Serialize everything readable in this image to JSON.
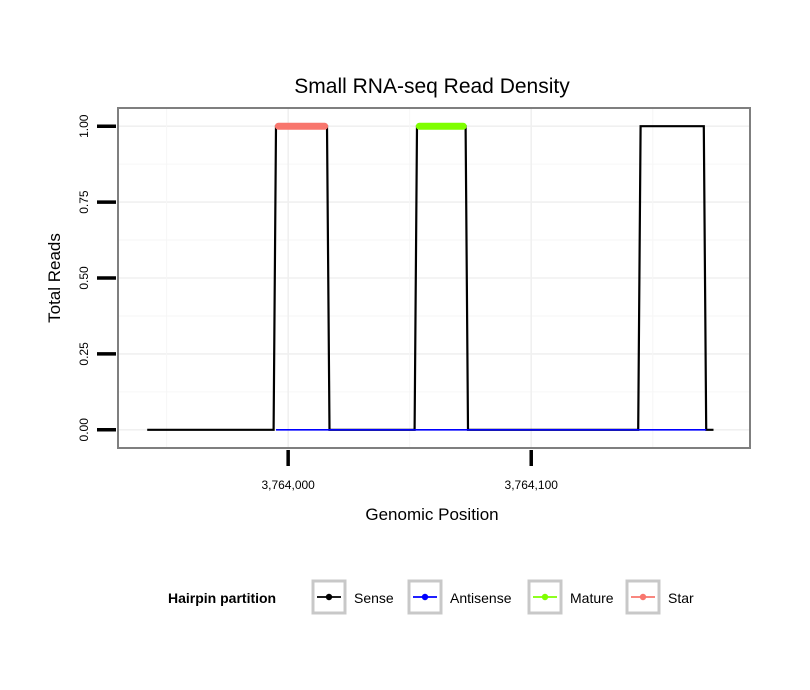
{
  "chart_data": {
    "type": "line",
    "title": "Small RNA-seq Read Density",
    "xlabel": "Genomic Position",
    "ylabel": "Total Reads",
    "xlim": [
      3763930,
      3764190
    ],
    "ylim": [
      -0.06,
      1.06
    ],
    "x_ticks": [
      {
        "value": 3764000,
        "label": "3,764,000"
      },
      {
        "value": 3764100,
        "label": "3,764,100"
      }
    ],
    "y_ticks": [
      {
        "value": 0.0,
        "label": "0.00"
      },
      {
        "value": 0.25,
        "label": "0.25"
      },
      {
        "value": 0.5,
        "label": "0.50"
      },
      {
        "value": 0.75,
        "label": "0.75"
      },
      {
        "value": 1.0,
        "label": "1.00"
      }
    ],
    "grid": true,
    "legend_position": "bottom",
    "legend_title": "Hairpin partition",
    "series": [
      {
        "name": "Sense",
        "color": "#000000",
        "x": [
          3763942,
          3763994,
          3763995,
          3764016,
          3764017,
          3764052,
          3764053,
          3764073,
          3764074,
          3764144,
          3764145,
          3764171,
          3764172,
          3764175
        ],
        "y": [
          0,
          0,
          1,
          1,
          0,
          0,
          1,
          1,
          0,
          0,
          1,
          1,
          0,
          0
        ]
      },
      {
        "name": "Antisense",
        "color": "#0000ff",
        "x": [
          3763995,
          3764017,
          3764053,
          3764074,
          3764145,
          3764172
        ],
        "y": [
          0,
          0,
          0,
          0,
          0,
          0
        ]
      },
      {
        "name": "Mature",
        "color": "#7fff00",
        "x": [
          3764054,
          3764072
        ],
        "y": [
          1,
          1
        ]
      },
      {
        "name": "Star",
        "color": "#f8766d",
        "x": [
          3763996,
          3764015
        ],
        "y": [
          1,
          1
        ]
      }
    ]
  }
}
